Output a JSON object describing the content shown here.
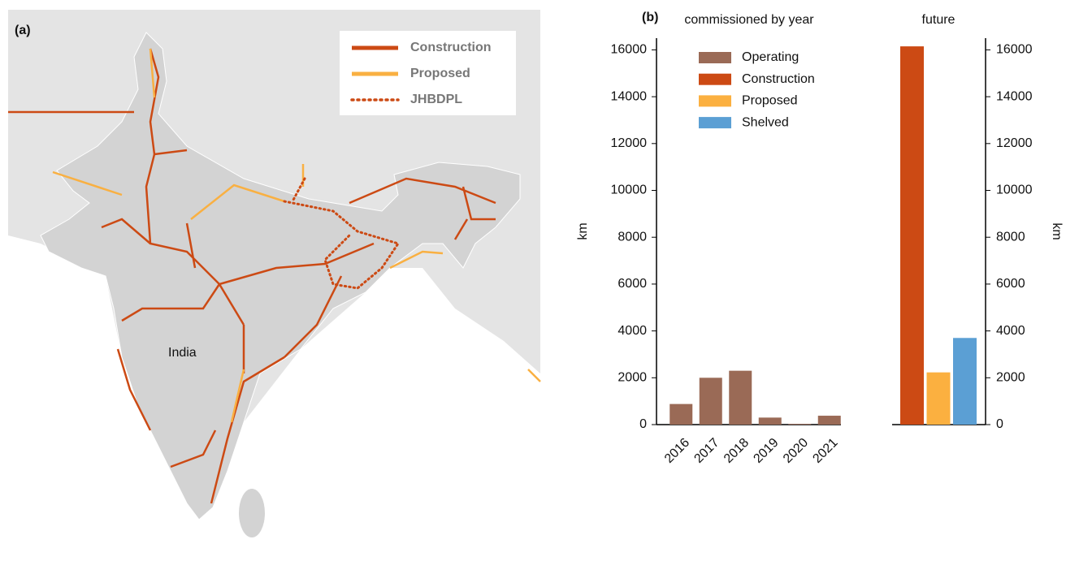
{
  "map": {
    "label": "(a)",
    "place": "India",
    "legend": [
      {
        "label": "Construction",
        "color": "#cc4a14",
        "style": "solid"
      },
      {
        "label": "Proposed",
        "color": "#f9b042",
        "style": "solid"
      },
      {
        "label": "JHBDPL",
        "color": "#cc4a14",
        "style": "dotted"
      }
    ]
  },
  "chart_data": [
    {
      "type": "bar",
      "label": "(b)",
      "title": "commissioned by year",
      "ylabel": "km",
      "categories": [
        "2016",
        "2017",
        "2018",
        "2019",
        "2020",
        "2021"
      ],
      "series": [
        {
          "name": "Operating",
          "color": "#9a6a56",
          "values": [
            880,
            2000,
            2300,
            300,
            30,
            380
          ]
        }
      ],
      "ylim": [
        0,
        16500
      ],
      "yticks": [
        0,
        2000,
        4000,
        6000,
        8000,
        10000,
        12000,
        14000,
        16000
      ]
    },
    {
      "type": "bar",
      "title": "future",
      "ylabel": "km",
      "series": [
        {
          "name": "Construction",
          "color": "#cc4a14",
          "values": [
            16150
          ]
        },
        {
          "name": "Proposed",
          "color": "#fbb040",
          "values": [
            2230
          ]
        },
        {
          "name": "Shelved",
          "color": "#5b9fd4",
          "values": [
            3700
          ]
        }
      ],
      "ylim": [
        0,
        16500
      ],
      "yticks": [
        0,
        2000,
        4000,
        6000,
        8000,
        10000,
        12000,
        14000,
        16000
      ]
    }
  ]
}
